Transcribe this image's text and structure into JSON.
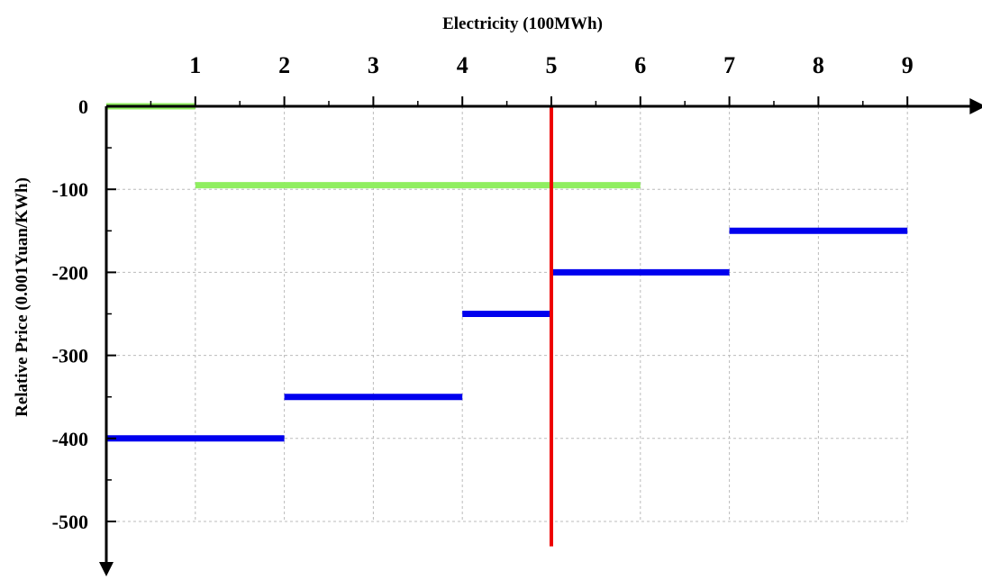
{
  "chart_data": {
    "type": "line",
    "title": "",
    "xlabel": "Electricity (100MWh)",
    "ylabel": "Relative Price (0.001Yuan/KWh)",
    "x_ticks": [
      "1",
      "2",
      "3",
      "4",
      "5",
      "6",
      "7",
      "8",
      "9"
    ],
    "y_ticks": [
      "0",
      "-100",
      "-200",
      "-300",
      "-400",
      "-500"
    ],
    "xlim": [
      0,
      9.7
    ],
    "ylim": [
      -560,
      20
    ],
    "x_axis_position": "top",
    "y_axis_direction": "downward",
    "grid": true,
    "colors": {
      "green": "#90ee60",
      "blue": "#0000ee",
      "red": "#ee0000"
    },
    "series": [
      {
        "color": "green",
        "segments": [
          {
            "x0": 0,
            "x1": 1,
            "y": 0
          },
          {
            "x0": 1,
            "x1": 6,
            "y": -95
          }
        ]
      },
      {
        "color": "blue",
        "segments": [
          {
            "x0": 0,
            "x1": 2,
            "y": -400
          },
          {
            "x0": 2,
            "x1": 4,
            "y": -350
          },
          {
            "x0": 4,
            "x1": 5,
            "y": -250
          },
          {
            "x0": 5,
            "x1": 7,
            "y": -200
          },
          {
            "x0": 7,
            "x1": 9,
            "y": -150
          }
        ]
      }
    ],
    "vertical_lines": [
      {
        "x": 5,
        "y_from": 0,
        "y_to": -530,
        "color": "red"
      }
    ]
  }
}
